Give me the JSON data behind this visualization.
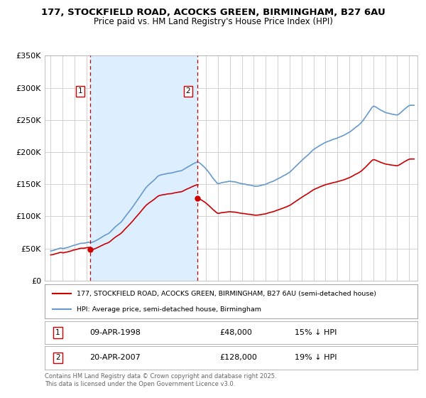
{
  "title_line1": "177, STOCKFIELD ROAD, ACOCKS GREEN, BIRMINGHAM, B27 6AU",
  "title_line2": "Price paid vs. HM Land Registry's House Price Index (HPI)",
  "ylim": [
    0,
    350000
  ],
  "yticks": [
    0,
    50000,
    100000,
    150000,
    200000,
    250000,
    300000,
    350000
  ],
  "ytick_labels": [
    "£0",
    "£50K",
    "£100K",
    "£150K",
    "£200K",
    "£250K",
    "£300K",
    "£350K"
  ],
  "vline1_date": 1998.28,
  "vline2_date": 2007.3,
  "sale1_marker_price": 48000,
  "sale2_marker_price": 128000,
  "sale1_date_str": "09-APR-1998",
  "sale1_price_str": "£48,000",
  "sale1_hpi_str": "15% ↓ HPI",
  "sale2_date_str": "20-APR-2007",
  "sale2_price_str": "£128,000",
  "sale2_hpi_str": "19% ↓ HPI",
  "legend_label1": "177, STOCKFIELD ROAD, ACOCKS GREEN, BIRMINGHAM, B27 6AU (semi-detached house)",
  "legend_label2": "HPI: Average price, semi-detached house, Birmingham",
  "footer_text": "Contains HM Land Registry data © Crown copyright and database right 2025.\nThis data is licensed under the Open Government Licence v3.0.",
  "line_color_red": "#cc0000",
  "line_color_blue": "#6699cc",
  "fill_color_blue": "#ddeeff",
  "background_color": "#ffffff",
  "grid_color": "#cccccc",
  "xlim_start": 1994.5,
  "xlim_end": 2025.7
}
